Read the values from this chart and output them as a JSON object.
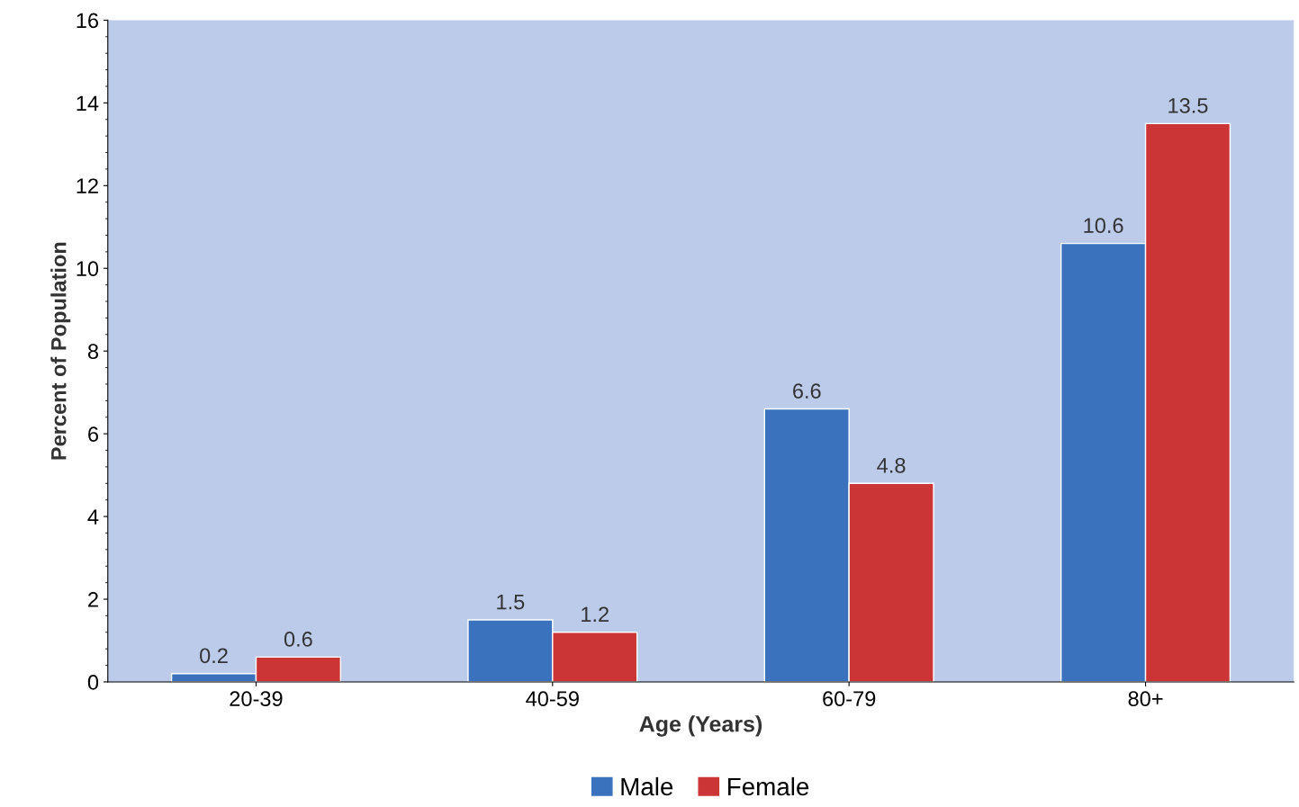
{
  "chart_data": {
    "type": "bar",
    "xlabel": "Age (Years)",
    "ylabel": "Percent of Population",
    "categories": [
      "20-39",
      "40-59",
      "60-79",
      "80+"
    ],
    "series": [
      {
        "name": "Male",
        "color": "#3a72be",
        "values": [
          0.2,
          1.5,
          6.6,
          10.6
        ]
      },
      {
        "name": "Female",
        "color": "#cc3535",
        "values": [
          0.6,
          1.2,
          4.8,
          13.5
        ]
      }
    ],
    "ylim": [
      0,
      16
    ],
    "yticks": [
      0,
      2,
      4,
      6,
      8,
      10,
      12,
      14,
      16
    ],
    "data_labels": true,
    "grid": false,
    "legend": "bottom"
  }
}
